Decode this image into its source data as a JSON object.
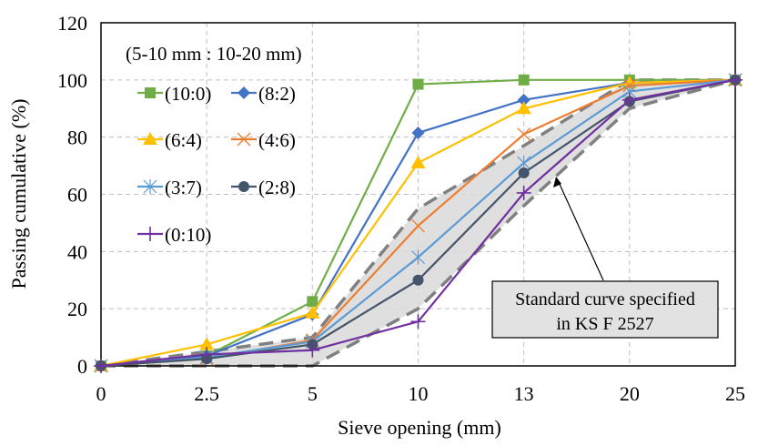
{
  "chart_data": {
    "type": "line",
    "title": "",
    "xlabel": "Sieve opening (mm)",
    "ylabel": "Passing cumulative (%)",
    "categories": [
      "0",
      "2.5",
      "5",
      "10",
      "13",
      "20",
      "25"
    ],
    "yticks": [
      "0",
      "20",
      "40",
      "60",
      "80",
      "100",
      "120"
    ],
    "ylim": [
      0,
      120
    ],
    "grid": true,
    "legend": {
      "title": "(5-10 mm : 10-20 mm)",
      "placement": "top-left"
    },
    "series": [
      {
        "name": "(10:0)",
        "color": "#70AD47",
        "marker": "square",
        "values": [
          0,
          3.5,
          22.5,
          98.5,
          100,
          100,
          100
        ]
      },
      {
        "name": "(8:2)",
        "color": "#4472C4",
        "marker": "diamond",
        "values": [
          0,
          3.5,
          18,
          81.5,
          93,
          99,
          100
        ]
      },
      {
        "name": "(6:4)",
        "color": "#FFC000",
        "marker": "triangle",
        "values": [
          0,
          7.5,
          18.5,
          71,
          90,
          99,
          100
        ]
      },
      {
        "name": "(4:6)",
        "color": "#ED7D31",
        "marker": "x",
        "values": [
          0,
          2.5,
          9,
          49,
          81,
          98,
          100
        ]
      },
      {
        "name": "(3:7)",
        "color": "#5B9BD5",
        "marker": "star",
        "values": [
          0,
          3,
          8.5,
          38,
          71,
          96,
          100
        ]
      },
      {
        "name": "(2:8)",
        "color": "#44546A",
        "marker": "circle",
        "values": [
          0,
          2.5,
          7.5,
          30,
          67.5,
          92.5,
          100
        ]
      },
      {
        "name": "(0:10)",
        "color": "#7030A0",
        "marker": "plus",
        "values": [
          0,
          4,
          5.5,
          15.5,
          60.5,
          93,
          100
        ]
      }
    ],
    "standard_band": {
      "name": "Standard curve specified in KS F 2527",
      "upper": [
        0,
        5,
        10,
        55,
        77,
        100,
        100
      ],
      "lower": [
        0,
        0,
        0,
        20,
        56,
        90,
        100
      ]
    },
    "annotation": {
      "line1": "Standard curve specified",
      "line2": "in KS F 2527"
    }
  }
}
